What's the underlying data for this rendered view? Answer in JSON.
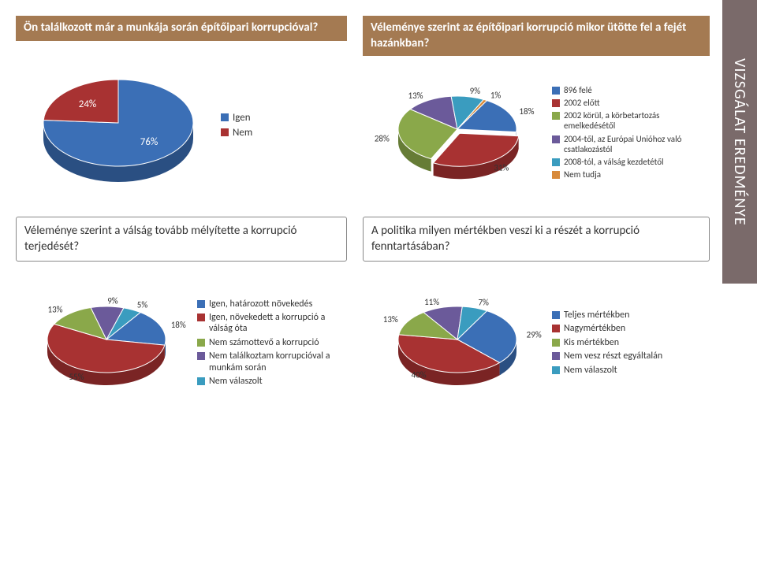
{
  "side_title": "VIZSGÁLAT EREDMÉNYE",
  "panels": {
    "tl": {
      "title": "Ön találkozott már a munkája során építőipari korrupcióval?",
      "title_style": "dark",
      "chart": {
        "type": "pie",
        "slices": [
          {
            "label": "Igen",
            "value": 76,
            "color": "#3b6fb6",
            "dark": "#2a4f82",
            "text_color": "#ffffff"
          },
          {
            "label": "Nem",
            "value": 24,
            "color": "#a83232",
            "dark": "#7a2424",
            "text_color": "#ffffff"
          }
        ],
        "legend_fontsize": 13,
        "label_fontsize": 13,
        "background": "#ffffff"
      }
    },
    "tr": {
      "title": "Véleménye szerint az építőipari korrupció mikor ütötte fel a fejét hazánkban?",
      "title_style": "dark",
      "chart": {
        "type": "pie",
        "slices": [
          {
            "label": "896 felé",
            "value": 18,
            "color": "#3b6fb6",
            "dark": "#2a4f82",
            "text_color": "#333333"
          },
          {
            "label": "2002 előtt",
            "value": 31,
            "color": "#a83232",
            "dark": "#7a2424",
            "text_color": "#333333",
            "exploded": true
          },
          {
            "label": "2002 körül, a körbetartozás emelkedésétől",
            "value": 28,
            "color": "#8aa84a",
            "dark": "#667c36",
            "text_color": "#333333"
          },
          {
            "label": "2004-től, az Európai Unióhoz való csatlakozástól",
            "value": 13,
            "color": "#6b5a9a",
            "dark": "#4c4070",
            "text_color": "#333333"
          },
          {
            "label": "2008-tól, a válság kezdetétől",
            "value": 9,
            "color": "#3a9cbf",
            "dark": "#2a7390",
            "text_color": "#333333"
          },
          {
            "label": "Nem tudja",
            "value": 1,
            "color": "#d88a3a",
            "dark": "#a8682a",
            "text_color": "#333333"
          }
        ],
        "legend_fontsize": 11,
        "label_fontsize": 11,
        "background": "#ffffff"
      }
    },
    "bl": {
      "title": "Véleménye szerint a válság tovább mélyítette a korrupció terjedését?",
      "title_style": "plain",
      "chart": {
        "type": "pie",
        "slices": [
          {
            "label": "Igen, határozott növekedés",
            "value": 18,
            "color": "#3b6fb6",
            "dark": "#2a4f82",
            "text_color": "#333333"
          },
          {
            "label": "Igen, növekedett a korrupció a válság óta",
            "value": 55,
            "color": "#a83232",
            "dark": "#7a2424",
            "text_color": "#ffffff"
          },
          {
            "label": "Nem számottevő a korrupció",
            "value": 13,
            "color": "#8aa84a",
            "dark": "#667c36",
            "text_color": "#333333"
          },
          {
            "label": "Nem találkoztam korrupcióval a munkám során",
            "value": 9,
            "color": "#6b5a9a",
            "dark": "#4c4070",
            "text_color": "#333333"
          },
          {
            "label": "Nem válaszolt",
            "value": 5,
            "color": "#3a9cbf",
            "dark": "#2a7390",
            "text_color": "#333333"
          }
        ],
        "legend_fontsize": 12,
        "label_fontsize": 11,
        "background": "#ffffff"
      }
    },
    "br": {
      "title": "A politika milyen mértékben veszi ki a részét a korrupció fenntartásában?",
      "title_style": "plain",
      "chart": {
        "type": "pie",
        "slices": [
          {
            "label": "Teljes mértékben",
            "value": 29,
            "color": "#3b6fb6",
            "dark": "#2a4f82",
            "text_color": "#333333"
          },
          {
            "label": "Nagymértékben",
            "value": 40,
            "color": "#a83232",
            "dark": "#7a2424",
            "text_color": "#ffffff"
          },
          {
            "label": "Kis mértékben",
            "value": 13,
            "color": "#8aa84a",
            "dark": "#667c36",
            "text_color": "#333333"
          },
          {
            "label": "Nem vesz részt egyáltalán",
            "value": 11,
            "color": "#6b5a9a",
            "dark": "#4c4070",
            "text_color": "#333333"
          },
          {
            "label": "Nem válaszolt",
            "value": 7,
            "color": "#3a9cbf",
            "dark": "#2a7390",
            "text_color": "#333333"
          }
        ],
        "legend_fontsize": 12,
        "label_fontsize": 11,
        "background": "#ffffff"
      }
    }
  }
}
